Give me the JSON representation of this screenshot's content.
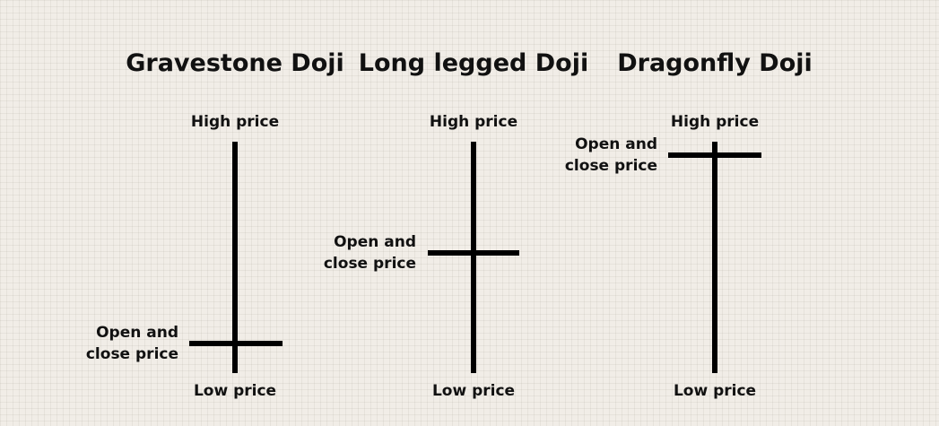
{
  "doji": [
    {
      "title": "Gravestone Doji",
      "high_label": "High price",
      "low_label": "Low price",
      "open_close_line1": "Open and",
      "open_close_line2": "close price"
    },
    {
      "title": "Long legged Doji",
      "high_label": "High price",
      "low_label": "Low price",
      "open_close_line1": "Open and",
      "open_close_line2": "close price"
    },
    {
      "title": "Dragonfly Doji",
      "high_label": "High price",
      "low_label": "Low price",
      "open_close_line1": "Open and",
      "open_close_line2": "close price"
    }
  ],
  "colors": {
    "background": "#f1ede7",
    "ink": "#000000"
  }
}
